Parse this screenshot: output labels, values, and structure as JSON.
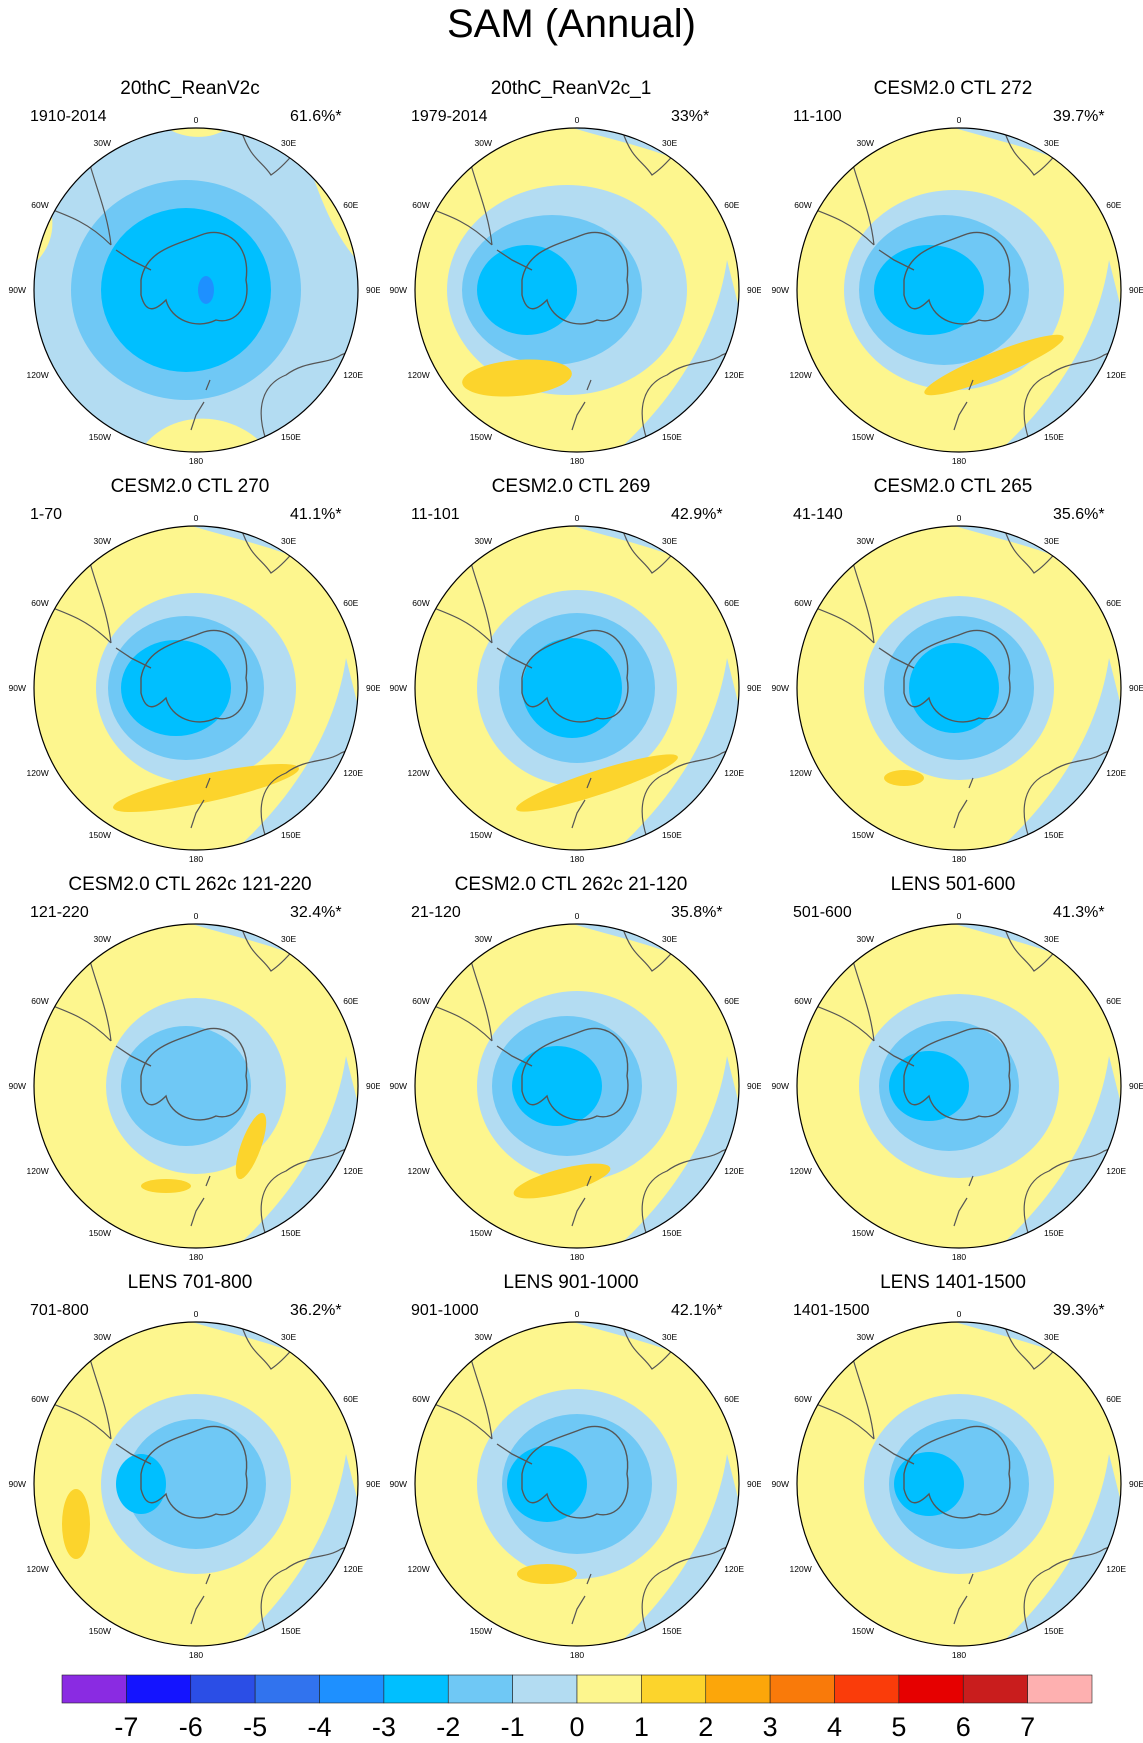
{
  "title": "SAM (Annual)",
  "lon_labels": {
    "top": "0",
    "bottom": "180",
    "left": [
      "30W",
      "60W",
      "90W",
      "120W",
      "150W"
    ],
    "right": [
      "30E",
      "60E",
      "90E",
      "120E",
      "150E"
    ]
  },
  "panels": [
    {
      "title": "20thC_ReanV2c",
      "period": "1910-2014",
      "variance": "61.6%*"
    },
    {
      "title": "20thC_ReanV2c_1",
      "period": "1979-2014",
      "variance": "33%*"
    },
    {
      "title": "CESM2.0 CTL 272",
      "period": "11-100",
      "variance": "39.7%*"
    },
    {
      "title": "CESM2.0 CTL 270",
      "period": "1-70",
      "variance": "41.1%*"
    },
    {
      "title": "CESM2.0 CTL 269",
      "period": "11-101",
      "variance": "42.9%*"
    },
    {
      "title": "CESM2.0 CTL 265",
      "period": "41-140",
      "variance": "35.6%*"
    },
    {
      "title": "CESM2.0 CTL 262c 121-220",
      "period": "121-220",
      "variance": "32.4%*"
    },
    {
      "title": "CESM2.0 CTL 262c 21-120",
      "period": "21-120",
      "variance": "35.8%*"
    },
    {
      "title": "LENS 501-600",
      "period": "501-600",
      "variance": "41.3%*"
    },
    {
      "title": "LENS 701-800",
      "period": "701-800",
      "variance": "36.2%*"
    },
    {
      "title": "LENS 901-1000",
      "period": "901-1000",
      "variance": "42.1%*"
    },
    {
      "title": "LENS 1401-1500",
      "period": "1401-1500",
      "variance": "39.3%*"
    }
  ],
  "colorbar": {
    "labels": [
      "-7",
      "-6",
      "-5",
      "-4",
      "-3",
      "-2",
      "-1",
      "0",
      "1",
      "2",
      "3",
      "4",
      "5",
      "6",
      "7"
    ],
    "colors": [
      "#8a2be2",
      "#1414ff",
      "#2b4ee6",
      "#3173ee",
      "#1e90ff",
      "#00bfff",
      "#6fc8f5",
      "#b3dcf2",
      "#fdf68e",
      "#fcd42c",
      "#fca60a",
      "#f97a0a",
      "#fa3c0a",
      "#e60000",
      "#c91d1d",
      "#feb0b0"
    ]
  }
}
